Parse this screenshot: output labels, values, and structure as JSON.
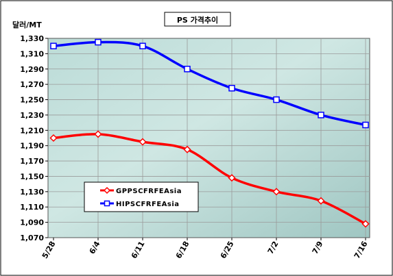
{
  "chart_data": {
    "type": "line",
    "title": "PS 가격추이",
    "ylabel": "달러/MT",
    "xlabel": "",
    "categories": [
      "5/28",
      "6/4",
      "6/11",
      "6/18",
      "6/25",
      "7/2",
      "7/9",
      "7/16"
    ],
    "ylim": [
      1070,
      1330
    ],
    "ytick_step": 20,
    "yticks": [
      "1,070",
      "1,090",
      "1,110",
      "1,130",
      "1,150",
      "1,170",
      "1,190",
      "1,210",
      "1,230",
      "1,250",
      "1,270",
      "1,290",
      "1,310",
      "1,330"
    ],
    "grid": true,
    "legend_position": "lower-left",
    "series": [
      {
        "name": "GPPS CFR FE Asia",
        "legend_label": "GPPSCFRFEAsia",
        "values": [
          1200,
          1205,
          1195,
          1185,
          1148,
          1130,
          1118,
          1088
        ],
        "color": "#ff0000",
        "marker": "diamond"
      },
      {
        "name": "HIPS CFR FE Asia",
        "legend_label": "HIPSCFRFEAsia",
        "values": [
          1320,
          1325,
          1320,
          1290,
          1265,
          1250,
          1230,
          1217
        ],
        "color": "#0000ff",
        "marker": "square"
      }
    ]
  }
}
